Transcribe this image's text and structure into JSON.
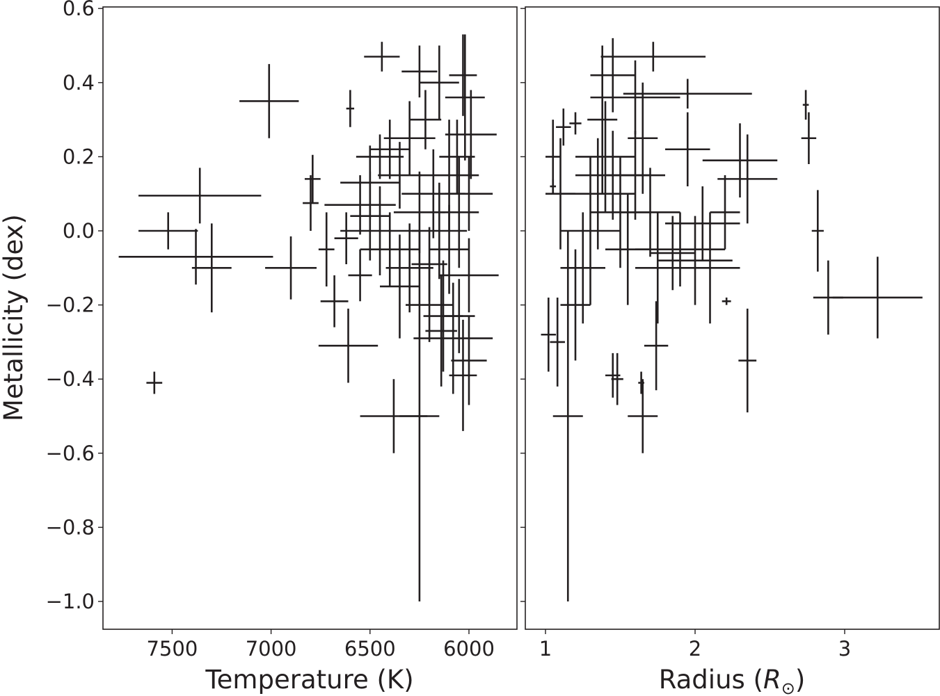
{
  "chart_data": [
    {
      "type": "scatter",
      "subtype": "errorbar",
      "panel": "left",
      "title": "",
      "xlabel": "Temperature (K)",
      "ylabel": "Metallicity (dex)",
      "xlim": [
        7790,
        5780
      ],
      "ylim": [
        -1.08,
        0.6
      ],
      "x_inverted": true,
      "xticks": [
        7500,
        7000,
        6500,
        6000
      ],
      "xtick_labels": [
        "7500",
        "7000",
        "6500",
        "6000"
      ],
      "yticks": [
        0.6,
        0.4,
        0.2,
        0.0,
        -0.2,
        -0.4,
        -0.6,
        -0.8,
        -1.0
      ],
      "ytick_labels": [
        "0.6",
        "0.4",
        "0.2",
        "0.0",
        "−0.2",
        "−0.4",
        "−0.6",
        "−0.8",
        "−1.0"
      ],
      "grid": false,
      "legend": null,
      "points_format": "[x, y, xerr, yerr]",
      "points": [
        [
          7010,
          0.35,
          150,
          0.1
        ],
        [
          7360,
          0.095,
          310,
          0.075
        ],
        [
          7520,
          0.0,
          150,
          0.05
        ],
        [
          7380,
          -0.07,
          390,
          0.075
        ],
        [
          7300,
          -0.1,
          100,
          0.12
        ],
        [
          7590,
          -0.41,
          40,
          0.03
        ],
        [
          6900,
          -0.1,
          130,
          0.085
        ],
        [
          6600,
          0.33,
          20,
          0.05
        ],
        [
          6440,
          0.47,
          90,
          0.04
        ],
        [
          6790,
          0.14,
          40,
          0.065
        ],
        [
          6800,
          0.075,
          40,
          0.075
        ],
        [
          6610,
          -0.31,
          150,
          0.1
        ],
        [
          6380,
          -0.5,
          170,
          0.1
        ],
        [
          6250,
          -0.5,
          100,
          0.5
        ],
        [
          6680,
          -0.19,
          70,
          0.07
        ],
        [
          6250,
          0.43,
          90,
          0.07
        ],
        [
          6150,
          0.4,
          100,
          0.1
        ],
        [
          6020,
          0.36,
          100,
          0.17
        ],
        [
          6030,
          0.42,
          70,
          0.11
        ],
        [
          5990,
          0.26,
          130,
          0.12
        ],
        [
          6060,
          0.2,
          90,
          0.1
        ],
        [
          6100,
          0.15,
          150,
          0.15
        ],
        [
          6000,
          0.1,
          120,
          0.1
        ],
        [
          6050,
          0.05,
          100,
          0.15
        ],
        [
          6000,
          -0.12,
          150,
          0.1
        ],
        [
          6050,
          -0.23,
          80,
          0.1
        ],
        [
          6080,
          -0.29,
          200,
          0.15
        ],
        [
          6000,
          -0.35,
          90,
          0.12
        ],
        [
          6030,
          -0.39,
          70,
          0.15
        ],
        [
          6140,
          -0.27,
          80,
          0.15
        ],
        [
          6130,
          -0.23,
          100,
          0.15
        ],
        [
          6450,
          0.2,
          120,
          0.06
        ],
        [
          6500,
          0.13,
          150,
          0.1
        ],
        [
          6550,
          0.07,
          180,
          0.08
        ],
        [
          6450,
          0.0,
          200,
          0.12
        ],
        [
          6400,
          -0.05,
          150,
          0.1
        ],
        [
          6300,
          -0.1,
          120,
          0.12
        ],
        [
          6350,
          -0.15,
          100,
          0.14
        ],
        [
          6200,
          -0.2,
          120,
          0.1
        ],
        [
          6300,
          0.25,
          130,
          0.1
        ],
        [
          6220,
          0.3,
          80,
          0.08
        ],
        [
          6350,
          0.15,
          110,
          0.09
        ],
        [
          6180,
          0.1,
          160,
          0.12
        ],
        [
          6250,
          0.05,
          130,
          0.11
        ],
        [
          6150,
          0.0,
          140,
          0.13
        ],
        [
          6100,
          -0.05,
          100,
          0.12
        ],
        [
          6200,
          -0.09,
          90,
          0.1
        ],
        [
          6400,
          0.22,
          100,
          0.08
        ],
        [
          6500,
          0.04,
          100,
          0.12
        ],
        [
          6620,
          -0.02,
          60,
          0.07
        ],
        [
          6550,
          -0.12,
          60,
          0.07
        ],
        [
          6720,
          -0.05,
          40,
          0.1
        ]
      ]
    },
    {
      "type": "scatter",
      "subtype": "errorbar",
      "panel": "right",
      "title": "",
      "xlabel": "Radius (R⊙)",
      "xlabel_parts": {
        "prefix": "Radius (",
        "symbol": "R",
        "subscript": "⊙",
        "suffix": ")"
      },
      "ylabel": "",
      "xlim": [
        0.86,
        3.64
      ],
      "ylim": [
        -1.08,
        0.6
      ],
      "xticks": [
        1,
        2,
        3
      ],
      "xtick_labels": [
        "1",
        "2",
        "3"
      ],
      "y_shared": true,
      "grid": false,
      "legend": null,
      "points_format": "[x, y, xerr, yerr]",
      "points": [
        [
          1.72,
          0.47,
          0.35,
          0.04
        ],
        [
          1.95,
          0.37,
          0.43,
          0.04
        ],
        [
          2.74,
          0.34,
          0.02,
          0.04
        ],
        [
          2.76,
          0.25,
          0.05,
          0.07
        ],
        [
          2.82,
          0.0,
          0.04,
          0.11
        ],
        [
          2.89,
          -0.18,
          0.1,
          0.1
        ],
        [
          3.22,
          -0.18,
          0.3,
          0.11
        ],
        [
          2.35,
          -0.35,
          0.06,
          0.14
        ],
        [
          1.74,
          -0.31,
          0.08,
          0.12
        ],
        [
          1.65,
          -0.5,
          0.1,
          0.1
        ],
        [
          1.15,
          -0.5,
          0.1,
          0.5
        ],
        [
          1.45,
          -0.39,
          0.05,
          0.06
        ],
        [
          1.48,
          -0.4,
          0.04,
          0.07
        ],
        [
          1.64,
          -0.41,
          0.02,
          0.03
        ],
        [
          2.35,
          0.14,
          0.2,
          0.12
        ],
        [
          2.3,
          0.19,
          0.25,
          0.1
        ],
        [
          2.21,
          -0.19,
          0.03,
          0.01
        ],
        [
          2.1,
          -0.1,
          0.2,
          0.15
        ],
        [
          2.05,
          0.02,
          0.25,
          0.1
        ],
        [
          1.95,
          0.22,
          0.15,
          0.1
        ],
        [
          1.85,
          -0.06,
          0.15,
          0.1
        ],
        [
          1.6,
          0.36,
          0.3,
          0.1
        ],
        [
          1.45,
          0.42,
          0.15,
          0.1
        ],
        [
          1.4,
          0.2,
          0.2,
          0.15
        ],
        [
          1.35,
          0.1,
          0.25,
          0.15
        ],
        [
          1.3,
          0.0,
          0.2,
          0.2
        ],
        [
          1.25,
          -0.1,
          0.15,
          0.15
        ],
        [
          1.2,
          -0.2,
          0.1,
          0.15
        ],
        [
          1.5,
          0.05,
          0.2,
          0.15
        ],
        [
          1.55,
          -0.05,
          0.15,
          0.15
        ],
        [
          1.45,
          0.15,
          0.25,
          0.12
        ],
        [
          1.6,
          0.15,
          0.2,
          0.12
        ],
        [
          1.7,
          0.05,
          0.2,
          0.12
        ],
        [
          1.75,
          -0.1,
          0.15,
          0.15
        ],
        [
          1.1,
          0.1,
          0.1,
          0.15
        ],
        [
          1.05,
          0.2,
          0.05,
          0.1
        ],
        [
          1.02,
          -0.28,
          0.05,
          0.1
        ],
        [
          1.08,
          -0.3,
          0.05,
          0.12
        ],
        [
          1.12,
          0.28,
          0.05,
          0.05
        ],
        [
          1.2,
          0.29,
          0.04,
          0.03
        ],
        [
          1.05,
          0.12,
          0.02,
          0.02
        ],
        [
          1.38,
          0.3,
          0.1,
          0.2
        ],
        [
          1.65,
          0.25,
          0.1,
          0.15
        ],
        [
          2.2,
          0.05,
          0.1,
          0.1
        ],
        [
          1.9,
          -0.05,
          0.3,
          0.1
        ],
        [
          2.0,
          -0.08,
          0.25,
          0.12
        ]
      ]
    }
  ],
  "colors": {
    "ink": "#231f20",
    "background": "#ffffff"
  }
}
